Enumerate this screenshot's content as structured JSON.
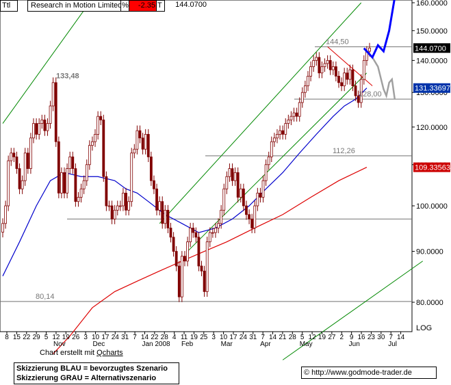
{
  "header": {
    "symbol": "Ttl",
    "name": "Research in Motion Limited",
    "pct_symbol": "%",
    "change": "-2.35",
    "type_symbol": "T",
    "price": "144.0700"
  },
  "log_label": "LOG",
  "credit": {
    "prefix": "Chart erstellt mit ",
    "tool": "Qcharts"
  },
  "legend": {
    "line1": "Skizzierung BLAU = bevorzugtes Szenario",
    "line2": "Skizzierung GRAU = Alternativszenario"
  },
  "copyright": "© http://www.godmode-trader.de",
  "colors": {
    "candle": "#800000",
    "ma_short": "#0000cc",
    "ma_long": "#dd0000",
    "channel": "#008800",
    "blue_scenario": "#0000ff",
    "gray_scenario": "#a0a0a0",
    "level_line": "#707070",
    "price_tag": "#000000",
    "ma_short_tag": "#0033aa",
    "ma_long_tag": "#cc0000"
  },
  "chart_data": {
    "type": "candlestick",
    "y_axis": {
      "scale": "log",
      "ticks": [
        "160.0000",
        "150.0000",
        "140.0000",
        "130.0000",
        "120.0000",
        "110.0000",
        "100.0000",
        "90.0000",
        "80.0000"
      ],
      "tick_values": [
        160,
        150,
        140,
        130,
        120,
        110,
        100,
        90,
        80
      ]
    },
    "y_tags": [
      {
        "label": "144.0700",
        "value": 144.07,
        "style": "price_tag"
      },
      {
        "label": "131.33697",
        "value": 131.33697,
        "style": "ma_short_tag"
      },
      {
        "label": "109.33563",
        "value": 109.33563,
        "style": "ma_long_tag"
      }
    ],
    "x_axis": {
      "day_ticks": [
        "8",
        "15",
        "22",
        "29",
        "5",
        "12",
        "19",
        "26",
        "3",
        "10",
        "17",
        "24",
        "31",
        "7",
        "14",
        "22",
        "28",
        "4",
        "11",
        "19",
        "25",
        "3",
        "10",
        "17",
        "24",
        "31",
        "7",
        "14",
        "21",
        "28",
        "5",
        "12",
        "19",
        "27",
        "2",
        "9",
        "16",
        "23",
        "30",
        "7",
        "14"
      ],
      "month_labels": [
        "Nov",
        "Dec",
        "Jan 2008",
        "Feb",
        "Mar",
        "Apr",
        "May",
        "Jun",
        "Jul"
      ]
    },
    "annotations": [
      {
        "text": "133,48",
        "value": 133.48
      },
      {
        "text": "144,50",
        "value": 144.5
      },
      {
        "text": "128,00",
        "value": 128.0
      },
      {
        "text": "112,26",
        "value": 112.26
      },
      {
        "text": "80,14",
        "value": 80.14
      }
    ],
    "levels": [
      144.5,
      128.0,
      112.26,
      97.0,
      80.14
    ],
    "closes": [
      96,
      100,
      111,
      113,
      112,
      109,
      104,
      106,
      113,
      109,
      117,
      121,
      118,
      121,
      122,
      119,
      121,
      126,
      133,
      116,
      103,
      108,
      103,
      109,
      112,
      109,
      101,
      102,
      104,
      106,
      110,
      115,
      116,
      118,
      123,
      122,
      107,
      100,
      100,
      97,
      99,
      100,
      100,
      103,
      99,
      101,
      113,
      114,
      119,
      117,
      114,
      118,
      112,
      106,
      104,
      99,
      101,
      96,
      99,
      95,
      93,
      90,
      87,
      81,
      89,
      88,
      92,
      95,
      94,
      93,
      87,
      86,
      82,
      92,
      94,
      94,
      95,
      96,
      99,
      104,
      107,
      109,
      106,
      108,
      102,
      104,
      100,
      98,
      97,
      95,
      100,
      103,
      102,
      106,
      110,
      112,
      116,
      117,
      118,
      119,
      118,
      121,
      122,
      123,
      124,
      123,
      127,
      130,
      132,
      135,
      138,
      140,
      141,
      136,
      138,
      139,
      140,
      137,
      138,
      135,
      133,
      132,
      136,
      134,
      137,
      132,
      129,
      127,
      134,
      140,
      143,
      144.07
    ],
    "ma_short": [
      [
        0,
        85
      ],
      [
        6,
        92
      ],
      [
        12,
        100
      ],
      [
        17,
        106
      ],
      [
        22,
        108
      ],
      [
        28,
        107
      ],
      [
        34,
        107
      ],
      [
        40,
        106
      ],
      [
        44,
        104
      ],
      [
        48,
        103
      ],
      [
        52,
        101
      ],
      [
        58,
        98
      ],
      [
        64,
        96
      ],
      [
        70,
        94
      ],
      [
        76,
        95
      ],
      [
        82,
        97
      ],
      [
        88,
        100
      ],
      [
        94,
        104
      ],
      [
        100,
        108
      ],
      [
        106,
        113
      ],
      [
        112,
        118
      ],
      [
        118,
        123
      ],
      [
        122,
        126
      ],
      [
        126,
        128
      ],
      [
        130,
        131.34
      ]
    ],
    "ma_long": [
      [
        18,
        71
      ],
      [
        24,
        74
      ],
      [
        32,
        79
      ],
      [
        40,
        82
      ],
      [
        48,
        84
      ],
      [
        56,
        86
      ],
      [
        64,
        88
      ],
      [
        72,
        90
      ],
      [
        80,
        92
      ],
      [
        90,
        95
      ],
      [
        100,
        98
      ],
      [
        110,
        102
      ],
      [
        120,
        106
      ],
      [
        130,
        109.34
      ]
    ],
    "channel_lines": [
      {
        "from": [
          0,
          121
        ],
        "to": [
          50,
          190
        ]
      },
      {
        "from": [
          56,
          96
        ],
        "to": [
          128,
          160
        ]
      },
      {
        "from": [
          66,
          90
        ],
        "to": [
          130,
          136
        ]
      },
      {
        "from": [
          100,
          70
        ],
        "to": [
          150,
          88
        ]
      }
    ],
    "blue_scenario": [
      [
        129,
        144
      ],
      [
        132,
        141
      ],
      [
        134,
        145
      ],
      [
        136,
        143
      ],
      [
        138,
        150
      ],
      [
        140,
        162
      ]
    ],
    "gray_scenario": [
      [
        129,
        144
      ],
      [
        132,
        141
      ],
      [
        134,
        138
      ],
      [
        136,
        131
      ],
      [
        137,
        129
      ],
      [
        138,
        133
      ],
      [
        139,
        134
      ],
      [
        140,
        128
      ]
    ],
    "triangle_resistance": {
      "from": [
        116,
        144.5
      ],
      "to": [
        132,
        132
      ]
    }
  }
}
